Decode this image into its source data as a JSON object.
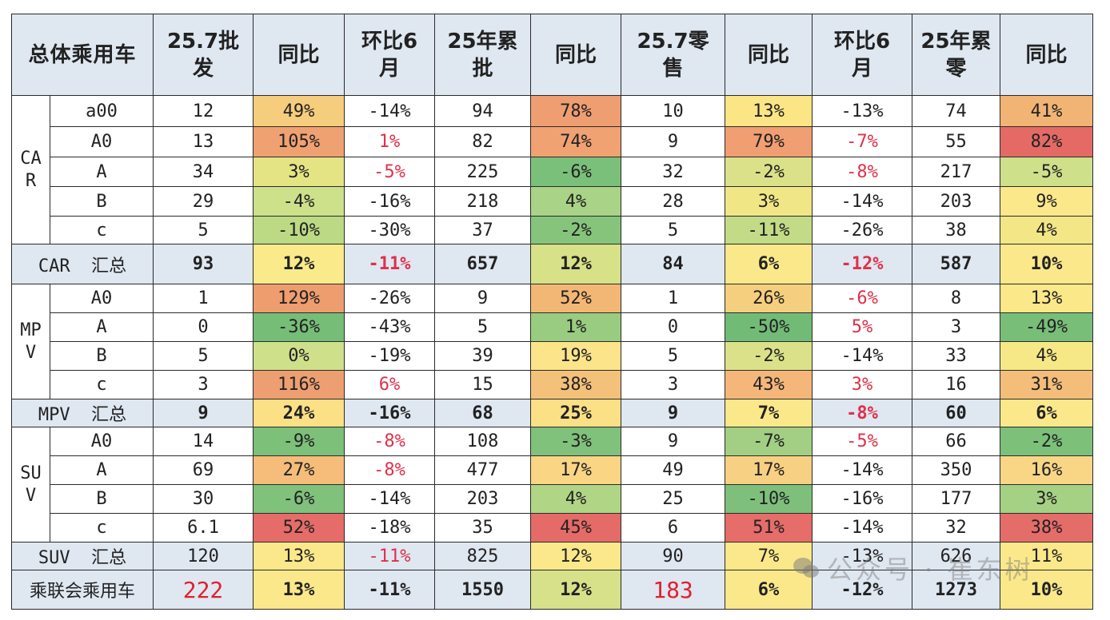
{
  "chart_data": {
    "type": "table",
    "title": "总体乘用车",
    "columns": [
      "总体乘用车",
      "",
      "25.7批发",
      "同比",
      "环比6月",
      "25年累批",
      "同比",
      "25.7零售",
      "同比",
      "环比6月",
      "25年累零",
      "同比"
    ],
    "header": {
      "c0": "总体乘用车",
      "c1": "25.7批\n发",
      "c2": "同比",
      "c3": "环比6\n月",
      "c4": "25年累\n批",
      "c5": "同比",
      "c6": "25.7零\n售",
      "c7": "同比",
      "c8": "环比6\n月",
      "c9": "25年累\n零",
      "c10": "同比"
    },
    "groups": {
      "car": "CA\nR",
      "mpv": "MP\nV",
      "suv": "SU\nV"
    },
    "rows": [
      {
        "group": "CAR",
        "seg": "a00",
        "v": [
          "12",
          "49%",
          "-14%",
          "94",
          "78%",
          "10",
          "13%",
          "-13%",
          "74",
          "41%"
        ]
      },
      {
        "group": "CAR",
        "seg": "A0",
        "v": [
          "13",
          "105%",
          "1%",
          "82",
          "74%",
          "9",
          "79%",
          "-7%",
          "55",
          "82%"
        ]
      },
      {
        "group": "CAR",
        "seg": "A",
        "v": [
          "34",
          "3%",
          "-5%",
          "225",
          "-6%",
          "32",
          "-2%",
          "-8%",
          "217",
          "-5%"
        ]
      },
      {
        "group": "CAR",
        "seg": "B",
        "v": [
          "29",
          "-4%",
          "-16%",
          "218",
          "4%",
          "28",
          "3%",
          "-14%",
          "203",
          "9%"
        ]
      },
      {
        "group": "CAR",
        "seg": "c",
        "v": [
          "5",
          "-10%",
          "-30%",
          "37",
          "-2%",
          "5",
          "-11%",
          "-26%",
          "38",
          "4%"
        ]
      },
      {
        "group": "CAR",
        "seg": "CAR  汇总",
        "v": [
          "93",
          "12%",
          "-11%",
          "657",
          "12%",
          "84",
          "6%",
          "-12%",
          "587",
          "10%"
        ]
      },
      {
        "group": "MPV",
        "seg": "A0",
        "v": [
          "1",
          "129%",
          "-26%",
          "9",
          "52%",
          "1",
          "26%",
          "-6%",
          "8",
          "13%"
        ]
      },
      {
        "group": "MPV",
        "seg": "A",
        "v": [
          "0",
          "-36%",
          "-43%",
          "5",
          "1%",
          "0",
          "-50%",
          "5%",
          "3",
          "-49%"
        ]
      },
      {
        "group": "MPV",
        "seg": "B",
        "v": [
          "5",
          "0%",
          "-19%",
          "39",
          "19%",
          "5",
          "-2%",
          "-14%",
          "33",
          "4%"
        ]
      },
      {
        "group": "MPV",
        "seg": "c",
        "v": [
          "3",
          "116%",
          "6%",
          "15",
          "38%",
          "3",
          "43%",
          "3%",
          "16",
          "31%"
        ]
      },
      {
        "group": "MPV",
        "seg": "MPV  汇总",
        "v": [
          "9",
          "24%",
          "-16%",
          "68",
          "25%",
          "9",
          "7%",
          "-8%",
          "60",
          "6%"
        ]
      },
      {
        "group": "SUV",
        "seg": "A0",
        "v": [
          "14",
          "-9%",
          "-8%",
          "108",
          "-3%",
          "9",
          "-7%",
          "-5%",
          "66",
          "-2%"
        ]
      },
      {
        "group": "SUV",
        "seg": "A",
        "v": [
          "69",
          "27%",
          "-8%",
          "477",
          "17%",
          "49",
          "17%",
          "-14%",
          "350",
          "16%"
        ]
      },
      {
        "group": "SUV",
        "seg": "B",
        "v": [
          "30",
          "-6%",
          "-14%",
          "203",
          "4%",
          "25",
          "-10%",
          "-16%",
          "177",
          "3%"
        ]
      },
      {
        "group": "SUV",
        "seg": "c",
        "v": [
          "6.1",
          "52%",
          "-18%",
          "35",
          "45%",
          "6",
          "51%",
          "-14%",
          "32",
          "38%"
        ]
      },
      {
        "group": "SUV",
        "seg": "SUV  汇总",
        "v": [
          "120",
          "13%",
          "-11%",
          "825",
          "12%",
          "90",
          "7%",
          "-13%",
          "626",
          "11%"
        ]
      },
      {
        "group": "TOTAL",
        "seg": "乘联会乘用车",
        "v": [
          "222",
          "13%",
          "-11%",
          "1550",
          "12%",
          "183",
          "6%",
          "-12%",
          "1273",
          "10%"
        ]
      }
    ],
    "colors": {
      "header_bg": "#dfe7f1",
      "neg_red_text": "#e0304a",
      "total_red_text": "#e02030",
      "heat": {
        "green_dark": "#7cc07b",
        "green": "#a6d286",
        "yellow_green": "#d3e08a",
        "yellow": "#fbe88a",
        "light_orange": "#f6c87a",
        "orange": "#ef9e6f",
        "red": "#e86a6a"
      }
    }
  },
  "cells": {
    "r0": {
      "seg": "a00",
      "c": [
        "12",
        "49%",
        "-14%",
        "94",
        "78%",
        "10",
        "13%",
        "-13%",
        "74",
        "41%"
      ],
      "bg": [
        "",
        "#f6cd7d",
        "",
        "",
        "#ef9e72",
        "",
        "#fbe585",
        "",
        "",
        "#f2b474"
      ]
    },
    "r1": {
      "seg": "A0",
      "c": [
        "13",
        "105%",
        "1%",
        "82",
        "74%",
        "9",
        "79%",
        "-7%",
        "55",
        "82%"
      ],
      "bg": [
        "",
        "#f0a171",
        "",
        "",
        "#f0a272",
        "",
        "#f09e72",
        "",
        "",
        "#e56a66"
      ]
    },
    "r2": {
      "seg": "A",
      "c": [
        "34",
        "3%",
        "-5%",
        "225",
        "-6%",
        "32",
        "-2%",
        "-8%",
        "217",
        "-5%"
      ],
      "bg": [
        "",
        "#e5e485",
        "",
        "",
        "#7bc07a",
        "",
        "#dbe188",
        "",
        "",
        "#cfe08a"
      ]
    },
    "r3": {
      "seg": "B",
      "c": [
        "29",
        "-4%",
        "-16%",
        "218",
        "4%",
        "28",
        "3%",
        "-14%",
        "203",
        "9%"
      ],
      "bg": [
        "",
        "#cde08a",
        "",
        "",
        "#a9d386",
        "",
        "#f1e685",
        "",
        "",
        "#fbe88a"
      ]
    },
    "r4": {
      "seg": "c",
      "c": [
        "5",
        "-10%",
        "-30%",
        "37",
        "-2%",
        "5",
        "-11%",
        "-26%",
        "38",
        "4%"
      ],
      "bg": [
        "",
        "#bcd984",
        "",
        "",
        "#86c47c",
        "",
        "#c3db86",
        "",
        "",
        "#f2e686"
      ]
    },
    "r5": {
      "seg": "CAR  汇总",
      "c": [
        "93",
        "12%",
        "-11%",
        "657",
        "12%",
        "84",
        "6%",
        "-12%",
        "587",
        "10%"
      ],
      "bg": [
        "",
        "#faea8a",
        "",
        "",
        "#d6e188",
        "",
        "#fbe88a",
        "",
        "",
        "#fbe88a"
      ]
    },
    "r6": {
      "seg": "A0",
      "c": [
        "1",
        "129%",
        "-26%",
        "9",
        "52%",
        "1",
        "26%",
        "-6%",
        "8",
        "13%"
      ],
      "bg": [
        "",
        "#ee9d6f",
        "",
        "",
        "#f3b775",
        "",
        "#f6cf7e",
        "",
        "",
        "#fbe889"
      ]
    },
    "r7": {
      "seg": "A",
      "c": [
        "0",
        "-36%",
        "-43%",
        "5",
        "1%",
        "0",
        "-50%",
        "5%",
        "3",
        "-49%"
      ],
      "bg": [
        "",
        "#76bd78",
        "",
        "",
        "#99cc80",
        "",
        "#72bb77",
        "",
        "",
        "#78be79"
      ]
    },
    "r8": {
      "seg": "B",
      "c": [
        "5",
        "0%",
        "-19%",
        "39",
        "19%",
        "5",
        "-2%",
        "-14%",
        "33",
        "4%"
      ],
      "bg": [
        "",
        "#cfe08a",
        "",
        "",
        "#fbe48a",
        "",
        "#dbe188",
        "",
        "",
        "#f7e887"
      ]
    },
    "r9": {
      "seg": "c",
      "c": [
        "3",
        "116%",
        "6%",
        "15",
        "38%",
        "3",
        "43%",
        "3%",
        "16",
        "31%"
      ],
      "bg": [
        "",
        "#ee9f71",
        "",
        "",
        "#f4c17a",
        "",
        "#f4b779",
        "",
        "",
        "#f4bd7a"
      ]
    },
    "r10": {
      "seg": "MPV  汇总",
      "c": [
        "9",
        "24%",
        "-16%",
        "68",
        "25%",
        "9",
        "7%",
        "-8%",
        "60",
        "6%"
      ],
      "bg": [
        "",
        "#fbe085",
        "",
        "",
        "#fbe085",
        "",
        "#fbe88a",
        "",
        "",
        "#fbe88a"
      ]
    },
    "r11": {
      "seg": "A0",
      "c": [
        "14",
        "-9%",
        "-8%",
        "108",
        "-3%",
        "9",
        "-7%",
        "-5%",
        "66",
        "-2%"
      ],
      "bg": [
        "",
        "#7dc07a",
        "",
        "",
        "#80c17b",
        "",
        "#a2cf84",
        "",
        "",
        "#7cc07a"
      ]
    },
    "r12": {
      "seg": "A",
      "c": [
        "69",
        "27%",
        "-8%",
        "477",
        "17%",
        "49",
        "17%",
        "-14%",
        "350",
        "16%"
      ],
      "bg": [
        "",
        "#f5bc7a",
        "",
        "",
        "#f9d584",
        "",
        "#f8d083",
        "",
        "",
        "#f9d686"
      ]
    },
    "r13": {
      "seg": "B",
      "c": [
        "30",
        "-6%",
        "-14%",
        "203",
        "4%",
        "25",
        "-10%",
        "-16%",
        "177",
        "3%"
      ],
      "bg": [
        "",
        "#80c17b",
        "",
        "",
        "#b0d585",
        "",
        "#7ec07b",
        "",
        "",
        "#a5d184"
      ]
    },
    "r14": {
      "seg": "c",
      "c": [
        "6.1",
        "52%",
        "-18%",
        "35",
        "45%",
        "6",
        "51%",
        "-14%",
        "32",
        "38%"
      ],
      "bg": [
        "",
        "#e56c68",
        "",
        "",
        "#e56b68",
        "",
        "#e66d69",
        "",
        "",
        "#e56d69"
      ]
    },
    "r15": {
      "seg": "SUV  汇总",
      "c": [
        "120",
        "13%",
        "-11%",
        "825",
        "12%",
        "90",
        "7%",
        "-13%",
        "626",
        "11%"
      ],
      "bg": [
        "",
        "#fbe88a",
        "",
        "",
        "#fbe88a",
        "",
        "#fbe88a",
        "",
        "",
        "#fbe88a"
      ]
    },
    "r16": {
      "seg": "乘联会乘用车",
      "c": [
        "222",
        "13%",
        "-11%",
        "1550",
        "12%",
        "183",
        "6%",
        "-12%",
        "1273",
        "10%"
      ],
      "bg": [
        "",
        "#fbe88a",
        "",
        "",
        "#d7e18a",
        "",
        "#fbe88a",
        "",
        "",
        "#fbe88a"
      ]
    }
  },
  "red_text_cells": {
    "r1": [
      2
    ],
    "r2": [
      2
    ],
    "r5": [
      2,
      7
    ],
    "r1b": [
      7
    ],
    "r2b": [
      7
    ],
    "note": "red text in 环比6月 columns"
  },
  "watermark": "公众号 · 崔东树"
}
